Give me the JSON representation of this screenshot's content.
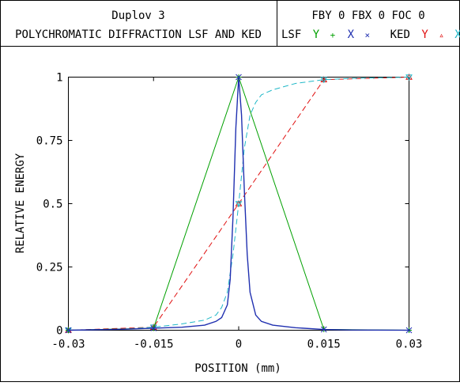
{
  "header": {
    "title": "Duplov 3",
    "subtitle": "POLYCHROMATIC DIFFRACTION LSF AND KED",
    "settings": "FBY 0 FBX 0 FOC 0",
    "legend": {
      "lsf_label": "LSF",
      "lsf_y": "Y",
      "lsf_y_marker": "+",
      "lsf_x": "X",
      "lsf_x_marker": "×",
      "ked_label": "KED",
      "ked_y": "Y",
      "ked_y_marker": "▵",
      "ked_x": "X",
      "ked_x_marker": "▿"
    }
  },
  "colors": {
    "frame": "#000000",
    "axes": "#000000",
    "lsf_y": "#00a000",
    "lsf_x": "#2030b0",
    "ked_y": "#e01010",
    "ked_x": "#20b8c8"
  },
  "chart_data": {
    "type": "line",
    "xlabel": "POSITION (mm)",
    "ylabel": "RELATIVE ENERGY",
    "xlim": [
      -0.03,
      0.03
    ],
    "ylim": [
      0,
      1
    ],
    "xticks": [
      -0.03,
      -0.015,
      0,
      0.015,
      0.03
    ],
    "xtick_labels": [
      "-0.03",
      "-0.015",
      "0",
      "0.015",
      "0.03"
    ],
    "yticks": [
      0,
      0.25,
      0.5,
      0.75,
      1
    ],
    "ytick_labels": [
      "0",
      "0.25",
      "0.5",
      "0.75",
      "1"
    ],
    "grid": false,
    "series": [
      {
        "name": "LSF X",
        "style": "solid",
        "color": "#2030b0",
        "x": [
          -0.03,
          -0.02,
          -0.015,
          -0.01,
          -0.006,
          -0.004,
          -0.003,
          -0.002,
          -0.0015,
          -0.001,
          -0.0005,
          0,
          0.0005,
          0.001,
          0.0015,
          0.002,
          0.003,
          0.004,
          0.006,
          0.01,
          0.015,
          0.02,
          0.03
        ],
        "y": [
          0.0,
          0.004,
          0.008,
          0.012,
          0.02,
          0.035,
          0.05,
          0.1,
          0.2,
          0.45,
          0.8,
          1.0,
          0.85,
          0.55,
          0.3,
          0.15,
          0.06,
          0.035,
          0.02,
          0.01,
          0.003,
          0.001,
          0.0
        ],
        "markers": [
          -0.03,
          -0.015,
          0,
          0.015,
          0.03
        ]
      },
      {
        "name": "LSF Y",
        "style": "solid",
        "color": "#00a000",
        "x": [
          -0.03,
          -0.015,
          0,
          0.015,
          0.03
        ],
        "y": [
          0.0,
          0.008,
          1.0,
          0.003,
          0.0
        ],
        "markers": [
          -0.03,
          -0.015,
          0,
          0.015,
          0.03
        ]
      },
      {
        "name": "KED X",
        "style": "dashed",
        "color": "#20b8c8",
        "x": [
          -0.03,
          -0.02,
          -0.015,
          -0.01,
          -0.006,
          -0.004,
          -0.003,
          -0.002,
          -0.001,
          0,
          0.001,
          0.002,
          0.003,
          0.004,
          0.006,
          0.01,
          0.015,
          0.02,
          0.03
        ],
        "y": [
          0.0,
          0.005,
          0.012,
          0.025,
          0.04,
          0.06,
          0.09,
          0.15,
          0.3,
          0.5,
          0.72,
          0.85,
          0.9,
          0.93,
          0.95,
          0.975,
          0.99,
          0.995,
          1.0
        ],
        "markers": [
          -0.03,
          -0.015,
          0,
          0.015,
          0.03
        ]
      },
      {
        "name": "KED Y",
        "style": "dashed",
        "color": "#e01010",
        "x": [
          -0.03,
          -0.015,
          0,
          0.015,
          0.03
        ],
        "y": [
          0.0,
          0.012,
          0.5,
          0.99,
          1.0
        ],
        "markers": [
          -0.03,
          -0.015,
          0,
          0.015,
          0.03
        ]
      }
    ]
  }
}
